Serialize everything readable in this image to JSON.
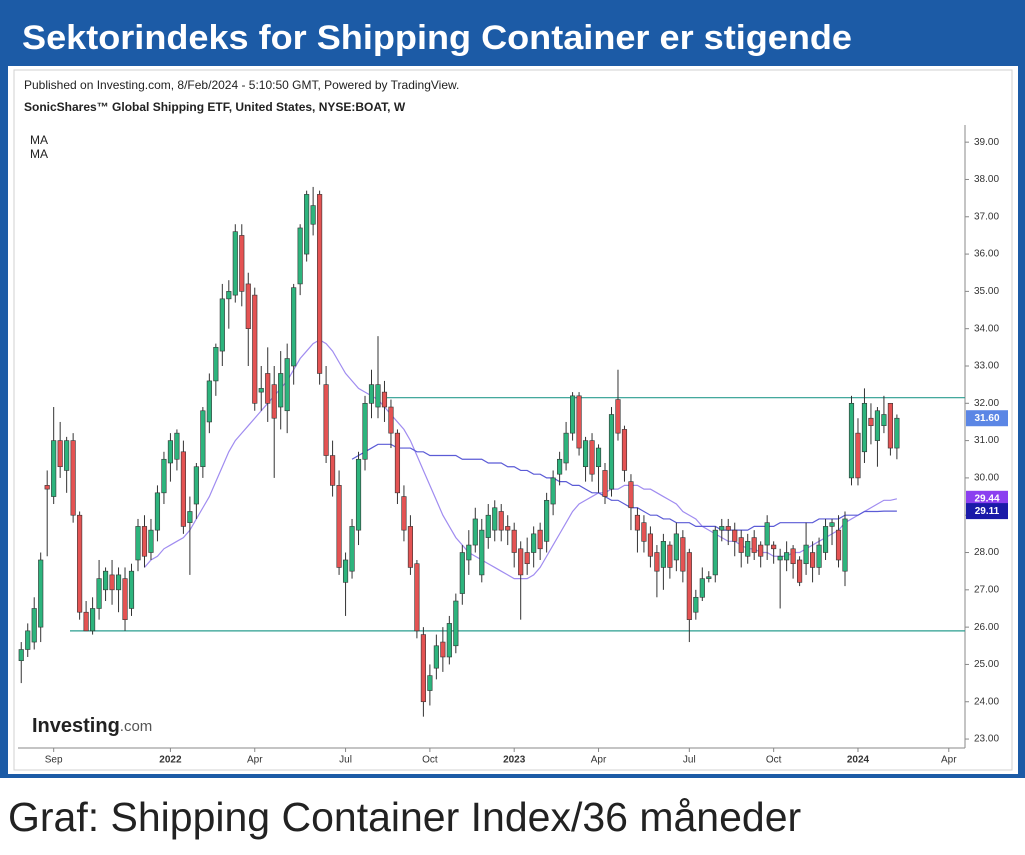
{
  "header": {
    "title": "Sektorindeks for Shipping Container er stigende"
  },
  "caption": "Graf: Shipping Container Index/36 måneder",
  "logo": {
    "brand": "Investing",
    "suffix": ".com"
  },
  "chart_data": {
    "type": "candlestick",
    "title": "SonicShares™ Global Shipping ETF, United States, NYSE:BOAT, W",
    "subtitle": "Published on Investing.com, 8/Feb/2024 - 5:10:50 GMT, Powered by TradingView.",
    "up_color": "#2db47d",
    "down_color": "#e45353",
    "close_label": "31.60",
    "close_label_color": "#5b86e5",
    "hlines": [
      32.15,
      25.9
    ],
    "hline_color": "#2a9d8f",
    "ylim": [
      22.76,
      39.46
    ],
    "yticks": [
      {
        "value": 23,
        "label": "23.00"
      },
      {
        "value": 24,
        "label": "24.00"
      },
      {
        "value": 25,
        "label": "25.00"
      },
      {
        "value": 26,
        "label": "26.00"
      },
      {
        "value": 27,
        "label": "27.00"
      },
      {
        "value": 28,
        "label": "28.00"
      },
      {
        "value": 29,
        "label": "29.00"
      },
      {
        "value": 30,
        "label": "30.00"
      },
      {
        "value": 31,
        "label": "31.00"
      },
      {
        "value": 32,
        "label": "32.00"
      },
      {
        "value": 33,
        "label": "33.00"
      },
      {
        "value": 34,
        "label": "34.00"
      },
      {
        "value": 35,
        "label": "35.00"
      },
      {
        "value": 36,
        "label": "36.00"
      },
      {
        "value": 37,
        "label": "37.00"
      },
      {
        "value": 38,
        "label": "38.00"
      },
      {
        "value": 39,
        "label": "39.00"
      }
    ],
    "categories": [
      null,
      null,
      null,
      null,
      null,
      "Sep",
      null,
      null,
      null,
      null,
      null,
      null,
      null,
      null,
      null,
      null,
      null,
      null,
      null,
      null,
      null,
      null,
      null,
      "2022",
      null,
      null,
      null,
      null,
      null,
      null,
      null,
      null,
      null,
      null,
      null,
      null,
      "Apr",
      null,
      null,
      null,
      null,
      null,
      null,
      null,
      null,
      null,
      null,
      null,
      null,
      null,
      "Jul",
      null,
      null,
      null,
      null,
      null,
      null,
      null,
      null,
      null,
      null,
      null,
      null,
      "Oct",
      null,
      null,
      null,
      null,
      null,
      null,
      null,
      null,
      null,
      null,
      null,
      null,
      "2023",
      null,
      null,
      null,
      null,
      null,
      null,
      null,
      null,
      null,
      null,
      null,
      null,
      "Apr",
      null,
      null,
      null,
      null,
      null,
      null,
      null,
      null,
      null,
      null,
      null,
      null,
      null,
      "Jul",
      null,
      null,
      null,
      null,
      null,
      null,
      null,
      null,
      null,
      null,
      null,
      null,
      "Oct",
      null,
      null,
      null,
      null,
      null,
      null,
      null,
      null,
      null,
      null,
      null,
      null,
      "2024",
      null,
      null,
      null,
      null,
      null,
      null,
      null,
      null,
      null,
      null,
      null,
      null,
      null,
      "Apr",
      null,
      null
    ],
    "open": [
      25.1,
      25.4,
      25.6,
      26.0,
      29.8,
      29.5,
      31.0,
      30.2,
      31.0,
      29.0,
      26.4,
      25.9,
      26.5,
      27.0,
      27.4,
      27.0,
      27.3,
      26.5,
      27.8,
      28.7,
      28.0,
      28.6,
      29.6,
      30.4,
      30.5,
      30.7,
      28.8,
      29.3,
      30.3,
      31.5,
      32.6,
      33.4,
      34.8,
      34.9,
      36.5,
      35.2,
      34.9,
      32.3,
      32.8,
      32.5,
      31.9,
      31.8,
      33.0,
      35.2,
      36.0,
      36.8,
      37.6,
      32.5,
      30.6,
      29.8,
      27.2,
      27.5,
      28.6,
      30.5,
      32.0,
      31.9,
      32.3,
      31.9,
      31.2,
      29.5,
      28.7,
      27.7,
      25.8,
      24.3,
      24.9,
      25.6,
      25.2,
      25.5,
      26.9,
      27.8,
      28.2,
      27.4,
      28.4,
      28.6,
      29.1,
      28.7,
      28.6,
      28.1,
      28.0,
      28.0,
      28.6,
      28.3,
      29.3,
      30.1,
      30.4,
      31.2,
      32.2,
      30.3,
      31.0,
      30.3,
      30.2,
      29.7,
      32.1,
      31.3,
      29.9,
      29.0,
      28.8,
      28.5,
      28.0,
      27.6,
      28.2,
      27.8,
      28.4,
      28.0,
      26.4,
      26.8,
      27.3,
      27.4,
      28.6,
      28.7,
      28.6,
      28.4,
      27.9,
      28.4,
      28.2,
      28.2,
      28.2,
      27.8,
      27.8,
      28.1,
      27.8,
      27.7,
      28.0,
      27.6,
      28.0,
      28.7,
      28.6,
      27.5,
      30.0,
      31.2,
      30.7,
      31.6,
      31.0,
      31.4,
      32.0,
      30.8,
      null,
      null,
      null,
      null,
      null,
      null,
      null,
      null,
      null,
      null
    ],
    "high": [
      25.6,
      26.1,
      26.8,
      28.0,
      30.2,
      31.9,
      31.5,
      31.1,
      31.2,
      29.1,
      26.7,
      26.8,
      27.8,
      27.6,
      27.8,
      27.6,
      27.6,
      27.7,
      28.9,
      29.0,
      28.9,
      29.8,
      30.7,
      31.2,
      31.3,
      31.0,
      29.5,
      30.4,
      31.9,
      32.8,
      33.6,
      35.2,
      35.3,
      36.8,
      36.8,
      35.5,
      35.1,
      33.0,
      33.5,
      33.0,
      33.4,
      33.6,
      35.2,
      36.8,
      37.7,
      37.8,
      37.7,
      33.0,
      31.0,
      30.2,
      28.0,
      28.9,
      30.7,
      32.2,
      32.9,
      33.8,
      32.6,
      32.1,
      31.3,
      29.8,
      29.0,
      27.8,
      26.0,
      25.0,
      25.8,
      26.0,
      26.3,
      26.9,
      28.2,
      28.6,
      29.2,
      28.9,
      29.3,
      29.4,
      29.3,
      29.0,
      28.8,
      28.3,
      28.4,
      28.7,
      28.8,
      29.6,
      30.2,
      30.7,
      31.5,
      32.3,
      32.3,
      31.1,
      31.2,
      30.9,
      30.4,
      31.9,
      32.9,
      31.4,
      30.1,
      29.2,
      29.0,
      28.7,
      28.2,
      28.5,
      28.3,
      28.8,
      28.6,
      28.1,
      27.0,
      27.6,
      27.5,
      28.7,
      28.9,
      28.9,
      28.8,
      28.6,
      28.5,
      28.6,
      28.3,
      29.0,
      28.3,
      28.1,
      28.3,
      28.2,
      27.9,
      28.8,
      28.3,
      28.4,
      28.9,
      28.9,
      29.0,
      29.1,
      32.2,
      31.6,
      32.4,
      32.0,
      31.9,
      32.2,
      32.0,
      31.7,
      null,
      null,
      null,
      null,
      null,
      null,
      null,
      null,
      null,
      null
    ],
    "low": [
      24.5,
      25.2,
      25.4,
      25.6,
      27.9,
      29.3,
      30.0,
      29.6,
      28.8,
      26.2,
      25.9,
      25.8,
      26.2,
      26.7,
      26.6,
      26.4,
      25.9,
      26.3,
      27.5,
      27.6,
      27.8,
      28.3,
      29.3,
      29.9,
      30.2,
      28.5,
      27.4,
      28.9,
      30.0,
      31.2,
      32.2,
      33.0,
      34.0,
      34.7,
      34.6,
      33.0,
      31.8,
      31.8,
      31.5,
      30.0,
      31.3,
      31.2,
      32.5,
      34.9,
      35.8,
      36.5,
      32.5,
      30.4,
      29.5,
      27.4,
      26.3,
      27.3,
      28.2,
      30.2,
      31.6,
      31.6,
      31.5,
      30.8,
      29.3,
      28.3,
      27.4,
      25.7,
      23.6,
      23.9,
      24.6,
      24.8,
      25.0,
      25.3,
      26.6,
      27.4,
      28.0,
      27.2,
      28.1,
      28.3,
      28.3,
      28.2,
      27.6,
      26.2,
      27.4,
      27.6,
      27.8,
      28.0,
      29.0,
      29.8,
      30.2,
      31.0,
      30.6,
      29.9,
      29.9,
      29.6,
      29.3,
      29.5,
      31.0,
      29.9,
      28.6,
      28.0,
      28.0,
      27.6,
      26.8,
      27.0,
      27.3,
      27.5,
      27.2,
      25.6,
      26.2,
      26.7,
      27.2,
      27.2,
      28.3,
      28.2,
      27.9,
      27.6,
      27.7,
      27.8,
      27.6,
      27.8,
      27.7,
      26.5,
      27.5,
      27.3,
      27.1,
      27.4,
      27.2,
      27.4,
      27.8,
      28.2,
      27.6,
      27.1,
      29.8,
      29.8,
      30.4,
      30.9,
      30.3,
      31.2,
      30.6,
      30.5,
      null,
      null,
      null,
      null,
      null,
      null,
      null,
      null,
      null,
      null
    ],
    "close": [
      25.4,
      25.9,
      26.5,
      27.8,
      29.7,
      31.0,
      30.3,
      31.0,
      29.0,
      26.4,
      25.9,
      26.5,
      27.3,
      27.5,
      27.0,
      27.4,
      26.2,
      27.5,
      28.7,
      27.9,
      28.6,
      29.6,
      30.5,
      31.0,
      31.2,
      28.7,
      29.1,
      30.3,
      31.8,
      32.6,
      33.5,
      34.8,
      35.0,
      36.6,
      35.0,
      34.0,
      32.0,
      32.4,
      32.0,
      31.6,
      32.8,
      33.2,
      35.1,
      36.7,
      37.6,
      37.3,
      32.8,
      30.6,
      29.8,
      27.6,
      27.8,
      28.7,
      30.5,
      32.0,
      32.5,
      32.5,
      31.9,
      31.2,
      29.6,
      28.6,
      27.6,
      25.9,
      24.0,
      24.7,
      25.5,
      25.2,
      26.1,
      26.7,
      28.0,
      28.2,
      28.9,
      28.6,
      29.0,
      29.2,
      28.6,
      28.6,
      28.0,
      27.4,
      27.7,
      28.5,
      28.1,
      29.4,
      30.0,
      30.5,
      31.2,
      32.2,
      30.8,
      31.0,
      30.1,
      30.8,
      29.5,
      31.7,
      31.2,
      30.2,
      29.2,
      28.6,
      28.3,
      27.9,
      27.5,
      28.3,
      27.6,
      28.5,
      27.5,
      26.2,
      26.8,
      27.3,
      27.35,
      28.6,
      28.7,
      28.6,
      28.3,
      28.0,
      28.3,
      28.0,
      27.9,
      28.8,
      28.1,
      27.9,
      28.0,
      27.7,
      27.2,
      28.2,
      27.6,
      28.2,
      28.7,
      28.8,
      27.8,
      28.9,
      32.0,
      30.0,
      32.0,
      31.4,
      31.8,
      31.7,
      30.8,
      31.6,
      null,
      null,
      null,
      null,
      null,
      null,
      null,
      null,
      null,
      null
    ],
    "series": [
      {
        "name": "MA",
        "color": "#a08cf0",
        "label_color": "#8b3ff0",
        "last_label": "29.44",
        "values": [
          null,
          null,
          null,
          null,
          null,
          null,
          null,
          null,
          null,
          null,
          null,
          null,
          null,
          null,
          null,
          null,
          null,
          null,
          null,
          27.6,
          27.8,
          27.9,
          28.1,
          28.2,
          28.3,
          28.4,
          28.6,
          28.9,
          29.2,
          29.5,
          29.9,
          30.3,
          30.7,
          31.0,
          31.2,
          31.4,
          31.6,
          31.8,
          32.0,
          32.2,
          32.4,
          32.6,
          32.9,
          33.2,
          33.4,
          33.6,
          33.7,
          33.6,
          33.4,
          33.1,
          32.8,
          32.6,
          32.4,
          32.3,
          32.2,
          32.1,
          31.9,
          31.7,
          31.5,
          31.3,
          31.0,
          30.6,
          30.2,
          29.8,
          29.4,
          29.0,
          28.7,
          28.4,
          28.2,
          28.0,
          27.9,
          27.8,
          27.7,
          27.6,
          27.5,
          27.4,
          27.3,
          27.3,
          27.3,
          27.4,
          27.6,
          27.9,
          28.2,
          28.5,
          28.8,
          29.1,
          29.3,
          29.4,
          29.5,
          29.6,
          29.6,
          29.7,
          29.7,
          29.8,
          29.8,
          29.8,
          29.7,
          29.7,
          29.6,
          29.5,
          29.4,
          29.3,
          29.1,
          29.0,
          28.9,
          28.7,
          28.6,
          28.5,
          28.4,
          28.3,
          28.3,
          28.2,
          28.1,
          28.1,
          28.0,
          28.0,
          27.9,
          27.9,
          27.9,
          28.0,
          28.0,
          28.1,
          28.2,
          28.3,
          28.4,
          28.5,
          28.6,
          28.8,
          28.9,
          29.0,
          29.1,
          29.2,
          29.3,
          29.4,
          29.4,
          29.44,
          null,
          null,
          null,
          null,
          null,
          null,
          null,
          null,
          null,
          null
        ]
      },
      {
        "name": "MA",
        "color": "#5b5bd6",
        "label_color": "#1a1aa8",
        "last_label": "29.11",
        "values": [
          null,
          null,
          null,
          null,
          null,
          null,
          null,
          null,
          null,
          null,
          null,
          null,
          null,
          null,
          null,
          null,
          null,
          null,
          null,
          null,
          null,
          null,
          null,
          null,
          null,
          null,
          null,
          null,
          null,
          null,
          null,
          null,
          null,
          null,
          null,
          null,
          null,
          null,
          null,
          null,
          null,
          null,
          null,
          null,
          null,
          null,
          null,
          null,
          null,
          null,
          null,
          30.5,
          30.6,
          30.7,
          30.8,
          30.9,
          30.9,
          30.9,
          30.8,
          30.8,
          30.8,
          30.7,
          30.7,
          30.6,
          30.6,
          30.6,
          30.6,
          30.6,
          30.5,
          30.5,
          30.5,
          30.5,
          30.4,
          30.4,
          30.4,
          30.3,
          30.3,
          30.2,
          30.2,
          30.1,
          30.1,
          30.0,
          30.0,
          29.9,
          29.9,
          29.8,
          29.8,
          29.7,
          29.6,
          29.6,
          29.5,
          29.4,
          29.4,
          29.3,
          29.2,
          29.2,
          29.1,
          29.0,
          29.0,
          28.9,
          28.9,
          28.8,
          28.8,
          28.8,
          28.7,
          28.7,
          28.7,
          28.7,
          28.6,
          28.6,
          28.6,
          28.6,
          28.6,
          28.7,
          28.7,
          28.7,
          28.7,
          28.8,
          28.8,
          28.8,
          28.8,
          28.8,
          28.8,
          28.9,
          28.9,
          28.9,
          28.9,
          29.0,
          29.0,
          29.0,
          29.1,
          29.1,
          29.1,
          29.11,
          29.11,
          29.11,
          null,
          null,
          null,
          null,
          null,
          null,
          null,
          null,
          null,
          null
        ]
      }
    ]
  }
}
